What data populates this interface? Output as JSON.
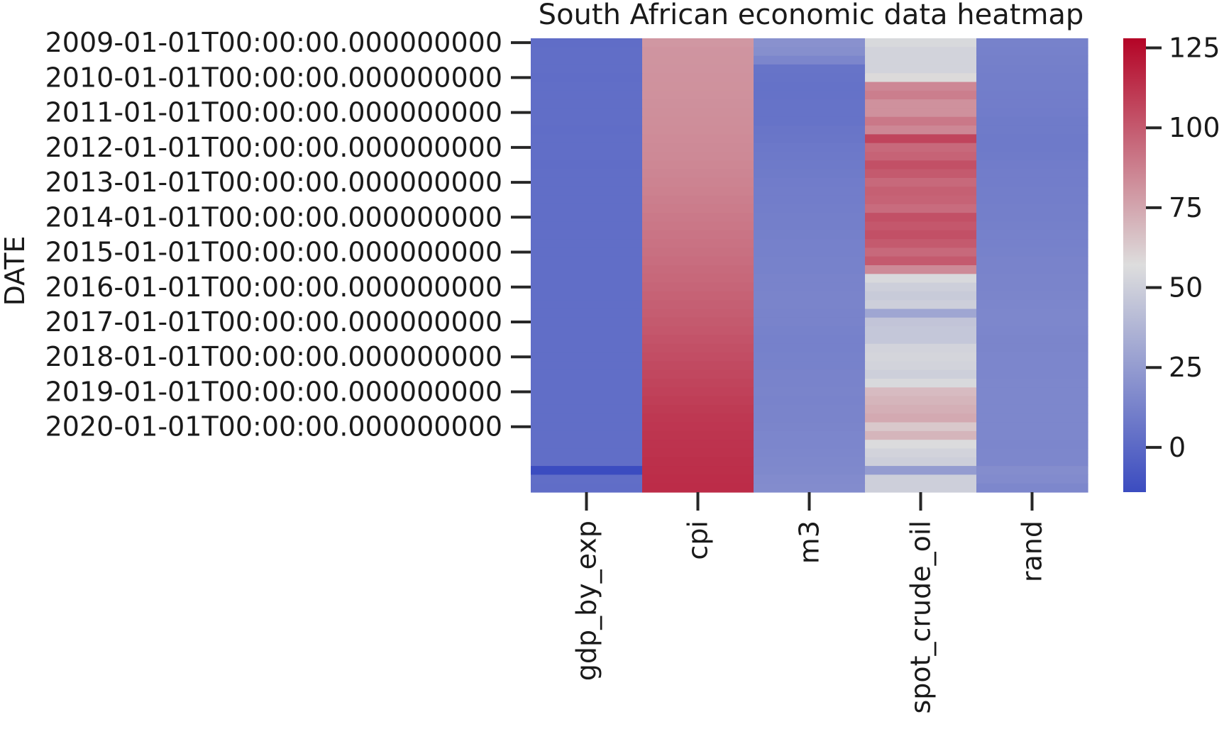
{
  "chart_data": {
    "type": "heatmap",
    "title": "South African economic data heatmap",
    "ylabel": "DATE",
    "xlabel": "",
    "columns": [
      "gdp_by_exp",
      "cpi",
      "m3",
      "spot_crude_oil",
      "rand"
    ],
    "y_tick_labels": [
      "2009-01-01T00:00:00.000000000",
      "2010-01-01T00:00:00.000000000",
      "2011-01-01T00:00:00.000000000",
      "2012-01-01T00:00:00.000000000",
      "2013-01-01T00:00:00.000000000",
      "2014-01-01T00:00:00.000000000",
      "2015-01-01T00:00:00.000000000",
      "2016-01-01T00:00:00.000000000",
      "2017-01-01T00:00:00.000000000",
      "2018-01-01T00:00:00.000000000",
      "2019-01-01T00:00:00.000000000",
      "2020-01-01T00:00:00.000000000"
    ],
    "y_tick_rows": [
      0,
      4,
      8,
      12,
      16,
      20,
      24,
      28,
      32,
      36,
      40,
      44
    ],
    "colorbar": {
      "min": -14,
      "max": 128,
      "ticks": [
        0,
        25,
        50,
        75,
        100,
        125
      ],
      "colormap": "coolwarm",
      "colors": [
        "#3b4cc0",
        "#dddddd",
        "#b40426"
      ]
    },
    "rows": [
      [
        2.0,
        80.0,
        20.0,
        55.0,
        12.5
      ],
      [
        2.5,
        80.8,
        19.0,
        52.0,
        12.0
      ],
      [
        2.5,
        81.0,
        14.5,
        52.0,
        11.5
      ],
      [
        2.5,
        81.2,
        5.5,
        52.0,
        11.0
      ],
      [
        2.0,
        81.5,
        5.0,
        58.0,
        10.5
      ],
      [
        2.5,
        81.7,
        4.5,
        85.0,
        10.5
      ],
      [
        2.5,
        82.0,
        4.5,
        88.0,
        10.0
      ],
      [
        2.5,
        82.3,
        5.0,
        82.0,
        10.0
      ],
      [
        2.5,
        82.5,
        5.0,
        82.0,
        9.5
      ],
      [
        2.5,
        82.9,
        5.0,
        90.0,
        9.0
      ],
      [
        2.0,
        83.3,
        6.0,
        85.0,
        9.0
      ],
      [
        2.5,
        83.7,
        6.5,
        107.0,
        8.5
      ],
      [
        2.5,
        84.0,
        7.5,
        95.0,
        8.5
      ],
      [
        2.5,
        84.6,
        8.0,
        97.0,
        9.0
      ],
      [
        2.0,
        85.2,
        8.5,
        103.0,
        9.5
      ],
      [
        2.5,
        85.8,
        9.0,
        100.0,
        10.0
      ],
      [
        2.5,
        86.4,
        9.5,
        95.0,
        10.0
      ],
      [
        2.5,
        87.2,
        10.0,
        98.0,
        10.5
      ],
      [
        2.5,
        88.0,
        10.0,
        97.0,
        10.5
      ],
      [
        2.5,
        88.8,
        10.5,
        94.0,
        11.0
      ],
      [
        2.5,
        89.6,
        11.0,
        103.0,
        11.0
      ],
      [
        2.5,
        90.4,
        11.0,
        101.0,
        11.5
      ],
      [
        2.5,
        91.2,
        11.5,
        103.0,
        12.0
      ],
      [
        2.5,
        92.0,
        12.0,
        100.0,
        12.0
      ],
      [
        2.5,
        92.8,
        12.0,
        95.0,
        12.5
      ],
      [
        2.5,
        93.6,
        12.5,
        100.0,
        13.0
      ],
      [
        2.5,
        94.5,
        12.5,
        84.0,
        13.0
      ],
      [
        2.5,
        95.4,
        13.0,
        55.0,
        13.5
      ],
      [
        2.5,
        96.3,
        13.0,
        50.0,
        13.5
      ],
      [
        2.5,
        97.2,
        13.5,
        48.0,
        14.0
      ],
      [
        2.5,
        98.1,
        13.5,
        50.0,
        14.5
      ],
      [
        2.5,
        99.0,
        13.0,
        30.0,
        15.0
      ],
      [
        2.5,
        100.0,
        13.0,
        45.0,
        15.0
      ],
      [
        2.5,
        101.0,
        12.5,
        46.0,
        14.5
      ],
      [
        2.5,
        102.0,
        12.0,
        46.0,
        14.0
      ],
      [
        2.5,
        103.0,
        12.0,
        52.0,
        14.0
      ],
      [
        2.5,
        104.0,
        12.5,
        53.0,
        14.5
      ],
      [
        2.5,
        105.0,
        12.5,
        52.0,
        14.5
      ],
      [
        2.5,
        106.0,
        13.0,
        50.0,
        14.5
      ],
      [
        2.5,
        107.0,
        13.0,
        55.0,
        15.0
      ],
      [
        2.5,
        108.0,
        13.5,
        68.0,
        15.0
      ],
      [
        2.5,
        109.0,
        13.0,
        70.0,
        15.0
      ],
      [
        2.5,
        110.0,
        13.5,
        72.0,
        15.0
      ],
      [
        2.5,
        111.0,
        13.5,
        74.0,
        15.0
      ],
      [
        2.5,
        111.5,
        14.0,
        64.0,
        15.0
      ],
      [
        2.5,
        112.0,
        14.5,
        70.0,
        15.0
      ],
      [
        2.5,
        112.5,
        14.5,
        56.0,
        14.5
      ],
      [
        2.5,
        113.0,
        15.0,
        52.0,
        15.0
      ],
      [
        2.5,
        113.5,
        15.5,
        50.0,
        15.0
      ],
      [
        -14.0,
        114.0,
        16.0,
        25.0,
        18.0
      ],
      [
        2.5,
        114.5,
        17.0,
        50.0,
        17.0
      ],
      [
        2.0,
        115.0,
        17.5,
        50.0,
        15.0
      ]
    ]
  }
}
